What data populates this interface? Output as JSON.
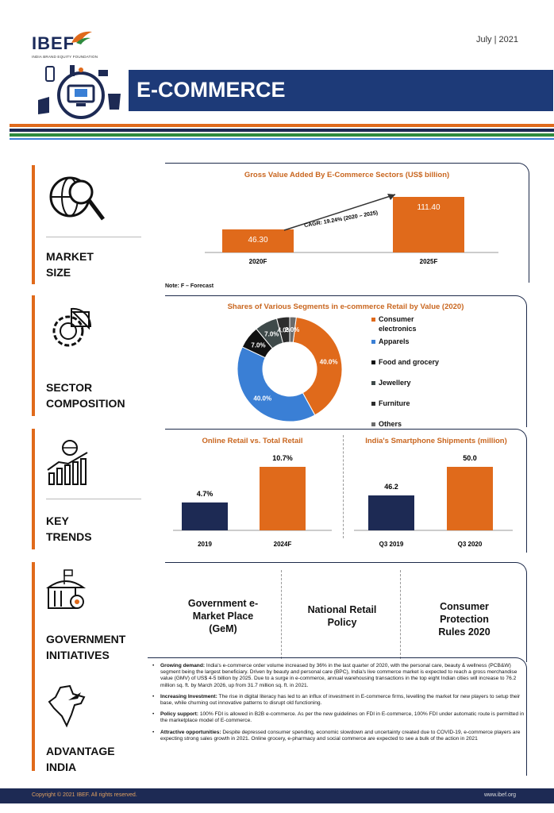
{
  "header": {
    "logo_text": "IBEF",
    "logo_subtitle": "INDIA BRAND EQUITY FOUNDATION",
    "date": "July | 2021",
    "title": "E-COMMERCE"
  },
  "sections": {
    "market_size": {
      "label_line1": "MARKET",
      "label_line2": "SIZE"
    },
    "sector_composition": {
      "label_line1": "SECTOR",
      "label_line2": "COMPOSITION"
    },
    "key_trends": {
      "label_line1": "KEY",
      "label_line2": "TRENDS"
    },
    "government_initiatives": {
      "label_line1": "GOVERNMENT",
      "label_line2": "INITIATIVES"
    },
    "advantage_india": {
      "label_line1": "ADVANTAGE",
      "label_line2": "INDIA"
    }
  },
  "chart_data": [
    {
      "type": "bar",
      "title": "Gross Value Added By E-Commerce Sectors (US$ billion)",
      "categories": [
        "2020F",
        "2025F"
      ],
      "values": [
        46.3,
        111.4
      ],
      "value_labels": [
        "46.30",
        "111.40"
      ],
      "annotation": "CAGR: 19.24% (2020 – 2025)",
      "note": "Note: F – Forecast",
      "color": "#e06a1b"
    },
    {
      "type": "pie",
      "title": "Shares of Various Segments in e-commerce Retail by Value (2020)",
      "categories": [
        "Consumer electronics",
        "Apparels",
        "Food and grocery",
        "Jewellery",
        "Furniture",
        "Others"
      ],
      "legend_labels": [
        "Consumer",
        "electronics",
        "Apparels",
        "Food and grocery",
        "Jewellery",
        "Furniture",
        "Others"
      ],
      "values": [
        40.0,
        40.0,
        7.0,
        7.0,
        4.0,
        2.0
      ],
      "value_labels": [
        "40.0%",
        "40.0%",
        "7.0%",
        "7.0%",
        "4.0%",
        "2.0%"
      ],
      "colors": [
        "#e06a1b",
        "#3a7fd5",
        "#111111",
        "#3f4a4a",
        "#2c2c2c",
        "#6b6b6b"
      ]
    },
    {
      "type": "bar",
      "title": "Online Retail vs. Total Retail",
      "categories": [
        "2019",
        "2024F"
      ],
      "values": [
        4.7,
        10.7
      ],
      "value_labels": [
        "4.7%",
        "10.7%"
      ],
      "colors": [
        "#1d2a54",
        "#e06a1b"
      ]
    },
    {
      "type": "bar",
      "title": "India's Smartphone Shipments (million)",
      "categories": [
        "Q3 2019",
        "Q3 2020"
      ],
      "values": [
        46.2,
        50.0
      ],
      "value_labels": [
        "46.2",
        "50.0"
      ],
      "colors": [
        "#1d2a54",
        "#e06a1b"
      ]
    }
  ],
  "initiatives": {
    "item1_line1": "Government e-",
    "item1_line2": "Market Place",
    "item1_line3": "(GeM)",
    "item2_line1": "National Retail",
    "item2_line2": "Policy",
    "item3_line1": "Consumer",
    "item3_line2": "Protection",
    "item3_line3": "Rules 2020"
  },
  "advantages": [
    {
      "title": "Growing demand:",
      "text": "India's e-commerce order volume increased by 36% in the last quarter of 2020, with the personal care, beauty & wellness (PCB&W) segment being the largest beneficiary. Driven by beauty and personal care (BPC), India's live commerce market is expected to reach a gross merchandise value (GMV) of US$ 4-5 billion by 2025. Due to a surge in e-commerce, annual warehousing transactions in the top eight Indian cities will increase to 76.2 million sq. ft. by March 2026, up from 31.7 million sq. ft. in 2021."
    },
    {
      "title": "Increasing Investment:",
      "text": "The rise in digital literacy has led to an influx of investment in E-commerce firms, levelling the market for new players to setup their base, while churning out innovative patterns to disrupt old functioning."
    },
    {
      "title": "Policy support:",
      "text": "100% FDI is allowed in B2B e-commerce. As per the new guidelines on FDI in E-commerce, 100% FDI under automatic route is permitted in the marketplace model of E-commerce."
    },
    {
      "title": "Attractive opportunities:",
      "text": "Despite depressed consumer spending, economic slowdown and uncertainty created due to COVID-19, e-commerce players are expecting strong sales growth in 2021. Online grocery, e-pharmacy and social commerce are expected to see a bulk of the action in 2021"
    }
  ],
  "footer": {
    "copyright": "Copyright © 2021 IBEF. All rights reserved.",
    "website": "www.ibef.org"
  }
}
